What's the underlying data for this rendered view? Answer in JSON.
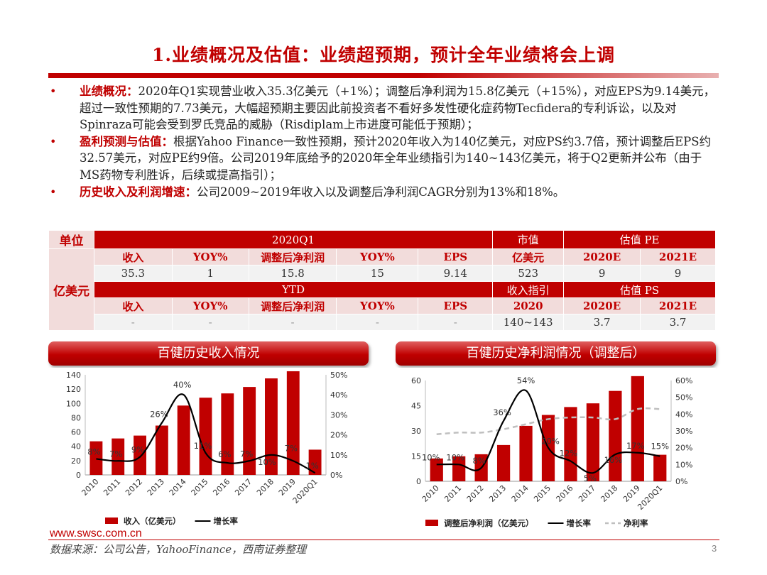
{
  "page": {
    "title": "1.业绩概况及估值：业绩超预期，预计全年业绩将会上调",
    "page_number": "3"
  },
  "bullets": [
    {
      "key": "业绩概况：",
      "text": "2020年Q1实现营业收入35.3亿美元（+1%）；调整后净利润为15.8亿美元（+15%），对应EPS为9.14美元，超过一致性预期的7.73美元，大幅超预期主要因此前投资者不看好多发性硬化症药物Tecfidera的专利诉讼，以及对Spinraza可能会受到罗氏竞品的威胁（Risdiplam上市进度可能低于预期）；"
    },
    {
      "key": "盈利预测与估值：",
      "text": "根据Yahoo Finance一致性预期，预计2020年收入为140亿美元，对应PS约3.7倍，预计调整后EPS约32.57美元，对应PE约9倍。公司2019年底给予的2020年全年业绩指引为140~143亿美元，将于Q2更新并公布（由于MS药物专利胜诉，后续或提高指引）；"
    },
    {
      "key": "历史收入及利润增速：",
      "text": "公司2009~2019年收入以及调整后净利润CAGR分别为13%和18%。"
    }
  ],
  "table": {
    "unit_label": "单位",
    "unit_value": "亿美元",
    "sec1": {
      "period": "2020Q1",
      "mcap": "市值",
      "val": "估值 PE"
    },
    "sec1_headers": [
      "收入",
      "YOY%",
      "调整后净利润",
      "YOY%",
      "EPS",
      "亿美元",
      "2020E",
      "2021E"
    ],
    "sec1_values": [
      "35.3",
      "1",
      "15.8",
      "15",
      "9.14",
      "523",
      "9",
      "9"
    ],
    "sec2": {
      "period": "YTD",
      "guide": "收入指引",
      "val": "估值 PS"
    },
    "sec2_headers": [
      "收入",
      "YOY%",
      "调整后净利润",
      "YOY%",
      "EPS",
      "2020",
      "2020E",
      "2021E"
    ],
    "sec2_values": [
      "-",
      "-",
      "-",
      "-",
      "-",
      "140~143",
      "3.7",
      "3.7"
    ]
  },
  "charts": {
    "left_title": "百健历史收入情况",
    "right_title": "百健历史净利润情况（调整后）"
  },
  "chart_data": [
    {
      "type": "bar",
      "title": "百健历史收入情况",
      "categories": [
        "2010",
        "2011",
        "2012",
        "2013",
        "2014",
        "2015",
        "2016",
        "2017",
        "2018",
        "2019",
        "2020Q1"
      ],
      "series": [
        {
          "name": "收入（亿美元）",
          "type": "bar",
          "axis": "left",
          "values": [
            47,
            51,
            55,
            69,
            97,
            108,
            114,
            123,
            135,
            145,
            35.3
          ]
        },
        {
          "name": "增长率",
          "type": "line",
          "axis": "right",
          "values": [
            8,
            7,
            9,
            26,
            40,
            11,
            6,
            7,
            10,
            7,
            1
          ],
          "labels": [
            "8%",
            "7%",
            "9%",
            "26%",
            "40%",
            "11%",
            "6%",
            "7%",
            "10%",
            "7%",
            "1%"
          ]
        }
      ],
      "left_ticks": [
        "0",
        "20",
        "40",
        "60",
        "80",
        "100",
        "120",
        "140"
      ],
      "right_ticks": [
        "0%",
        "10%",
        "20%",
        "30%",
        "40%",
        "50%"
      ],
      "ylim_left": [
        0,
        140
      ],
      "ylim_right": [
        0,
        50
      ],
      "legend": [
        "收入（亿美元）",
        "增长率"
      ]
    },
    {
      "type": "bar",
      "title": "百健历史净利润情况（调整后）",
      "categories": [
        "2010",
        "2011",
        "2012",
        "2013",
        "2014",
        "2015",
        "2016",
        "2017",
        "2018",
        "2019",
        "2020Q1"
      ],
      "series": [
        {
          "name": "调整后净利润（亿美元）",
          "type": "bar",
          "axis": "left",
          "values": [
            13.6,
            14.9,
            16.1,
            21.6,
            33,
            39.5,
            44.2,
            46.4,
            53.8,
            62.6,
            15.8
          ]
        },
        {
          "name": "增长率",
          "type": "line",
          "axis": "right",
          "values": [
            10,
            10,
            8,
            36,
            54,
            20,
            12,
            5,
            16,
            17,
            15
          ],
          "labels": [
            "10%",
            "10%",
            "8%",
            "36%",
            "54%",
            "20%",
            "12%",
            "5%",
            "16%",
            "17%",
            "15%"
          ]
        },
        {
          "name": "净利率",
          "type": "line-dashed",
          "axis": "right",
          "values": [
            28,
            29,
            29,
            31,
            34,
            37,
            38,
            38,
            37,
            43,
            43
          ]
        }
      ],
      "left_ticks": [
        "0",
        "15",
        "30",
        "45",
        "60"
      ],
      "right_ticks": [
        "0%",
        "10%",
        "20%",
        "30%",
        "40%",
        "50%",
        "60%"
      ],
      "ylim_left": [
        0,
        60
      ],
      "ylim_right": [
        0,
        60
      ],
      "legend": [
        "调整后净利润（亿美元）",
        "增长率",
        "净利率"
      ]
    }
  ],
  "footer": {
    "url": "www.swsc.com.cn",
    "source": "数据来源：公司公告，YahooFinance，西南证券整理"
  }
}
